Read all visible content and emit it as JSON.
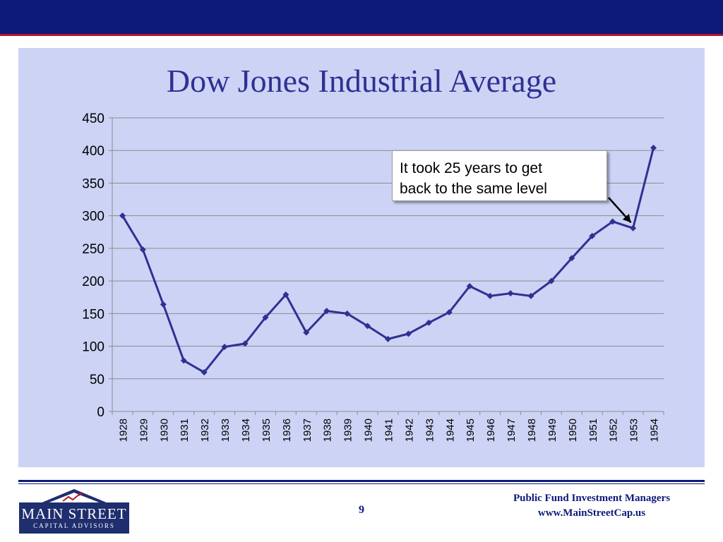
{
  "colors": {
    "brand_navy": "#0d1a7a",
    "brand_red": "#b3162b",
    "chart_background": "#ccd3f5",
    "series_line": "#2e3192",
    "gridline": "#8c8c8c"
  },
  "chart_data": {
    "type": "line",
    "title": "Dow Jones Industrial Average",
    "xlabel": "",
    "ylabel": "",
    "ylim": [
      0,
      450
    ],
    "yticks": [
      "0",
      "50",
      "100",
      "150",
      "200",
      "250",
      "300",
      "350",
      "400",
      "450"
    ],
    "categories": [
      "1928",
      "1929",
      "1930",
      "1931",
      "1932",
      "1933",
      "1934",
      "1935",
      "1936",
      "1937",
      "1938",
      "1939",
      "1940",
      "1941",
      "1942",
      "1943",
      "1944",
      "1945",
      "1946",
      "1947",
      "1948",
      "1949",
      "1950",
      "1951",
      "1952",
      "1953",
      "1954"
    ],
    "series": [
      {
        "values": [
          300,
          248,
          164,
          78,
          60,
          99,
          104,
          144,
          179,
          121,
          154,
          150,
          131,
          111,
          119,
          136,
          152,
          192,
          177,
          181,
          177,
          200,
          235,
          269,
          291,
          281,
          404
        ],
        "marker": "diamond"
      }
    ],
    "grid": true,
    "legend": "none",
    "annotation": {
      "line1": "It took 25 years to get",
      "line2": "back to the same level",
      "arrow_target_category": "1953"
    }
  },
  "footer": {
    "logo_name": "MAIN STREET",
    "logo_subtitle": "CAPITAL ADVISORS",
    "page_number": "9",
    "company": "Public Fund Investment Managers",
    "url": "www.MainStreetCap.us"
  }
}
